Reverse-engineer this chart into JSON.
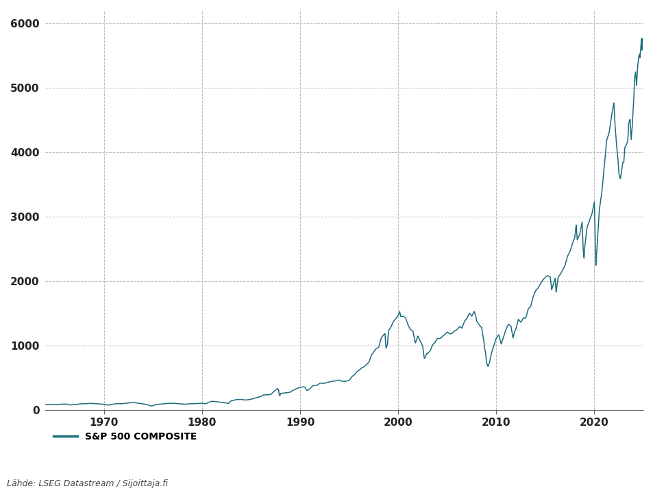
{
  "title": "",
  "legend_label": "S&P 500 COMPOSITE",
  "source_text": "Lähde: LSEG Datastream / Sijoittaja.fi",
  "line_color": "#1a6b7c",
  "background_color": "#ffffff",
  "grid_color": "#bbbbbb",
  "ylim": [
    0,
    6200
  ],
  "yticks": [
    0,
    1000,
    2000,
    3000,
    4000,
    5000,
    6000
  ],
  "xticks": [
    1970,
    1980,
    1990,
    2000,
    2010,
    2020
  ],
  "xstart": 1964.0,
  "xend": 2025.0,
  "key_points": [
    [
      1964.0,
      84
    ],
    [
      1964.25,
      86
    ],
    [
      1964.5,
      85
    ],
    [
      1964.75,
      84
    ],
    [
      1965.0,
      88
    ],
    [
      1965.25,
      87
    ],
    [
      1965.5,
      90
    ],
    [
      1965.75,
      92
    ],
    [
      1966.0,
      93
    ],
    [
      1966.25,
      91
    ],
    [
      1966.5,
      79
    ],
    [
      1966.75,
      82
    ],
    [
      1967.0,
      84
    ],
    [
      1967.25,
      90
    ],
    [
      1967.5,
      95
    ],
    [
      1967.75,
      97
    ],
    [
      1968.0,
      100
    ],
    [
      1968.25,
      101
    ],
    [
      1968.5,
      103
    ],
    [
      1968.75,
      103
    ],
    [
      1969.0,
      100
    ],
    [
      1969.25,
      98
    ],
    [
      1969.5,
      96
    ],
    [
      1969.75,
      93
    ],
    [
      1970.0,
      90
    ],
    [
      1970.25,
      84
    ],
    [
      1970.5,
      76
    ],
    [
      1970.75,
      87
    ],
    [
      1971.0,
      93
    ],
    [
      1971.25,
      100
    ],
    [
      1971.5,
      100
    ],
    [
      1971.75,
      98
    ],
    [
      1972.0,
      103
    ],
    [
      1972.25,
      107
    ],
    [
      1972.5,
      109
    ],
    [
      1972.75,
      116
    ],
    [
      1973.0,
      118
    ],
    [
      1973.2,
      114
    ],
    [
      1973.4,
      108
    ],
    [
      1973.6,
      105
    ],
    [
      1973.8,
      100
    ],
    [
      1974.0,
      97
    ],
    [
      1974.25,
      89
    ],
    [
      1974.5,
      79
    ],
    [
      1974.75,
      65
    ],
    [
      1974.9,
      63
    ],
    [
      1975.0,
      70
    ],
    [
      1975.25,
      83
    ],
    [
      1975.5,
      90
    ],
    [
      1975.75,
      91
    ],
    [
      1976.0,
      96
    ],
    [
      1976.25,
      101
    ],
    [
      1976.5,
      103
    ],
    [
      1976.75,
      104
    ],
    [
      1977.0,
      107
    ],
    [
      1977.25,
      103
    ],
    [
      1977.5,
      99
    ],
    [
      1977.75,
      97
    ],
    [
      1978.0,
      96
    ],
    [
      1978.25,
      90
    ],
    [
      1978.5,
      96
    ],
    [
      1978.75,
      97
    ],
    [
      1979.0,
      97
    ],
    [
      1979.25,
      99
    ],
    [
      1979.5,
      102
    ],
    [
      1979.75,
      105
    ],
    [
      1980.0,
      107
    ],
    [
      1980.2,
      100
    ],
    [
      1980.4,
      98
    ],
    [
      1980.6,
      118
    ],
    [
      1980.75,
      125
    ],
    [
      1981.0,
      136
    ],
    [
      1981.25,
      134
    ],
    [
      1981.5,
      130
    ],
    [
      1981.75,
      122
    ],
    [
      1982.0,
      120
    ],
    [
      1982.25,
      114
    ],
    [
      1982.5,
      109
    ],
    [
      1982.7,
      102
    ],
    [
      1982.85,
      132
    ],
    [
      1982.95,
      141
    ],
    [
      1983.0,
      145
    ],
    [
      1983.25,
      152
    ],
    [
      1983.5,
      165
    ],
    [
      1983.75,
      162
    ],
    [
      1984.0,
      165
    ],
    [
      1984.25,
      158
    ],
    [
      1984.5,
      156
    ],
    [
      1984.75,
      163
    ],
    [
      1985.0,
      168
    ],
    [
      1985.25,
      180
    ],
    [
      1985.5,
      191
    ],
    [
      1985.75,
      200
    ],
    [
      1986.0,
      212
    ],
    [
      1986.25,
      235
    ],
    [
      1986.5,
      236
    ],
    [
      1986.75,
      236
    ],
    [
      1987.0,
      242
    ],
    [
      1987.3,
      288
    ],
    [
      1987.6,
      320
    ],
    [
      1987.7,
      336
    ],
    [
      1987.8,
      314
    ],
    [
      1987.85,
      240
    ],
    [
      1987.9,
      224
    ],
    [
      1987.95,
      228
    ],
    [
      1988.0,
      257
    ],
    [
      1988.25,
      262
    ],
    [
      1988.5,
      268
    ],
    [
      1988.75,
      271
    ],
    [
      1989.0,
      278
    ],
    [
      1989.25,
      305
    ],
    [
      1989.5,
      323
    ],
    [
      1989.75,
      341
    ],
    [
      1990.0,
      353
    ],
    [
      1990.3,
      360
    ],
    [
      1990.5,
      355
    ],
    [
      1990.65,
      307
    ],
    [
      1990.75,
      307
    ],
    [
      1990.9,
      322
    ],
    [
      1991.0,
      330
    ],
    [
      1991.25,
      375
    ],
    [
      1991.5,
      380
    ],
    [
      1991.75,
      387
    ],
    [
      1992.0,
      417
    ],
    [
      1992.25,
      415
    ],
    [
      1992.5,
      415
    ],
    [
      1992.75,
      430
    ],
    [
      1993.0,
      436
    ],
    [
      1993.25,
      448
    ],
    [
      1993.5,
      449
    ],
    [
      1993.75,
      462
    ],
    [
      1994.0,
      466
    ],
    [
      1994.25,
      447
    ],
    [
      1994.5,
      444
    ],
    [
      1994.75,
      450
    ],
    [
      1995.0,
      460
    ],
    [
      1995.25,
      514
    ],
    [
      1995.5,
      544
    ],
    [
      1995.75,
      590
    ],
    [
      1996.0,
      616
    ],
    [
      1996.25,
      652
    ],
    [
      1996.5,
      670
    ],
    [
      1996.75,
      705
    ],
    [
      1997.0,
      741
    ],
    [
      1997.25,
      848
    ],
    [
      1997.5,
      900
    ],
    [
      1997.75,
      955
    ],
    [
      1998.0,
      970
    ],
    [
      1998.25,
      1111
    ],
    [
      1998.5,
      1166
    ],
    [
      1998.65,
      1186
    ],
    [
      1998.75,
      957
    ],
    [
      1998.9,
      1017
    ],
    [
      1999.0,
      1229
    ],
    [
      1999.25,
      1286
    ],
    [
      1999.5,
      1372
    ],
    [
      1999.75,
      1418
    ],
    [
      2000.0,
      1469
    ],
    [
      2000.15,
      1527
    ],
    [
      2000.25,
      1452
    ],
    [
      2000.5,
      1455
    ],
    [
      2000.75,
      1429
    ],
    [
      2001.0,
      1320
    ],
    [
      2001.25,
      1249
    ],
    [
      2001.5,
      1224
    ],
    [
      2001.75,
      1040
    ],
    [
      2002.0,
      1148
    ],
    [
      2002.25,
      1067
    ],
    [
      2002.5,
      990
    ],
    [
      2002.65,
      800
    ],
    [
      2002.75,
      815
    ],
    [
      2002.9,
      880
    ],
    [
      2003.0,
      879
    ],
    [
      2003.25,
      916
    ],
    [
      2003.5,
      1010
    ],
    [
      2003.75,
      1050
    ],
    [
      2004.0,
      1112
    ],
    [
      2004.25,
      1107
    ],
    [
      2004.5,
      1141
    ],
    [
      2004.75,
      1173
    ],
    [
      2005.0,
      1212
    ],
    [
      2005.25,
      1181
    ],
    [
      2005.5,
      1191
    ],
    [
      2005.75,
      1228
    ],
    [
      2006.0,
      1248
    ],
    [
      2006.25,
      1294
    ],
    [
      2006.5,
      1270
    ],
    [
      2006.75,
      1377
    ],
    [
      2007.0,
      1418
    ],
    [
      2007.25,
      1503
    ],
    [
      2007.5,
      1455
    ],
    [
      2007.75,
      1530
    ],
    [
      2007.9,
      1468
    ],
    [
      2008.0,
      1378
    ],
    [
      2008.25,
      1323
    ],
    [
      2008.5,
      1280
    ],
    [
      2008.7,
      1100
    ],
    [
      2008.8,
      968
    ],
    [
      2008.9,
      899
    ],
    [
      2009.0,
      735
    ],
    [
      2009.15,
      677
    ],
    [
      2009.3,
      735
    ],
    [
      2009.5,
      879
    ],
    [
      2009.75,
      1000
    ],
    [
      2010.0,
      1115
    ],
    [
      2010.25,
      1169
    ],
    [
      2010.5,
      1023
    ],
    [
      2010.75,
      1141
    ],
    [
      2011.0,
      1258
    ],
    [
      2011.25,
      1330
    ],
    [
      2011.5,
      1300
    ],
    [
      2011.7,
      1120
    ],
    [
      2011.85,
      1208
    ],
    [
      2012.0,
      1258
    ],
    [
      2012.25,
      1408
    ],
    [
      2012.5,
      1362
    ],
    [
      2012.75,
      1426
    ],
    [
      2013.0,
      1426
    ],
    [
      2013.25,
      1569
    ],
    [
      2013.5,
      1606
    ],
    [
      2013.75,
      1756
    ],
    [
      2014.0,
      1848
    ],
    [
      2014.25,
      1890
    ],
    [
      2014.5,
      1960
    ],
    [
      2014.75,
      2018
    ],
    [
      2015.0,
      2059
    ],
    [
      2015.25,
      2086
    ],
    [
      2015.5,
      2063
    ],
    [
      2015.65,
      1868
    ],
    [
      2015.75,
      1920
    ],
    [
      2015.9,
      1994
    ],
    [
      2016.0,
      2044
    ],
    [
      2016.1,
      1829
    ],
    [
      2016.3,
      2060
    ],
    [
      2016.5,
      2099
    ],
    [
      2016.75,
      2168
    ],
    [
      2017.0,
      2239
    ],
    [
      2017.25,
      2384
    ],
    [
      2017.5,
      2454
    ],
    [
      2017.75,
      2575
    ],
    [
      2018.0,
      2674
    ],
    [
      2018.1,
      2823
    ],
    [
      2018.15,
      2872
    ],
    [
      2018.25,
      2640
    ],
    [
      2018.5,
      2718
    ],
    [
      2018.75,
      2914
    ],
    [
      2018.85,
      2507
    ],
    [
      2018.95,
      2351
    ],
    [
      2019.0,
      2507
    ],
    [
      2019.25,
      2834
    ],
    [
      2019.5,
      2942
    ],
    [
      2019.75,
      3041
    ],
    [
      2020.0,
      3231
    ],
    [
      2020.15,
      2237
    ],
    [
      2020.3,
      2585
    ],
    [
      2020.5,
      3100
    ],
    [
      2020.75,
      3363
    ],
    [
      2021.0,
      3756
    ],
    [
      2021.25,
      4181
    ],
    [
      2021.5,
      4297
    ],
    [
      2021.75,
      4567
    ],
    [
      2022.0,
      4766
    ],
    [
      2022.1,
      4432
    ],
    [
      2022.25,
      4131
    ],
    [
      2022.4,
      3900
    ],
    [
      2022.5,
      3666
    ],
    [
      2022.65,
      3586
    ],
    [
      2022.75,
      3686
    ],
    [
      2022.9,
      3840
    ],
    [
      2023.0,
      3840
    ],
    [
      2023.1,
      4070
    ],
    [
      2023.25,
      4109
    ],
    [
      2023.4,
      4170
    ],
    [
      2023.5,
      4450
    ],
    [
      2023.65,
      4515
    ],
    [
      2023.75,
      4193
    ],
    [
      2023.85,
      4370
    ],
    [
      2024.0,
      4769
    ],
    [
      2024.1,
      5137
    ],
    [
      2024.2,
      5243
    ],
    [
      2024.3,
      5035
    ],
    [
      2024.4,
      5308
    ],
    [
      2024.5,
      5461
    ],
    [
      2024.6,
      5522
    ],
    [
      2024.65,
      5460
    ],
    [
      2024.7,
      5572
    ],
    [
      2024.75,
      5648
    ],
    [
      2024.8,
      5762
    ],
    [
      2024.85,
      5570
    ],
    [
      2024.9,
      5762
    ]
  ]
}
